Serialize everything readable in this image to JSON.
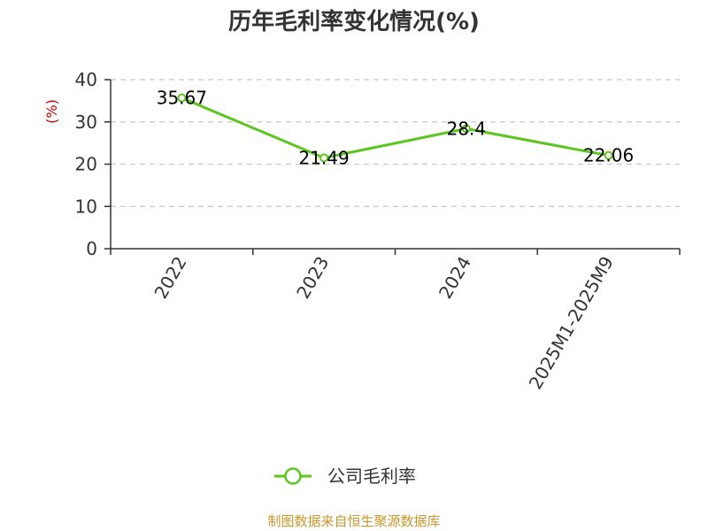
{
  "chart_data": {
    "type": "line",
    "title": "历年毛利率变化情况(%)",
    "xlabel": "",
    "ylabel": "(%)",
    "categories": [
      "2022",
      "2023",
      "2024",
      "2025M1-2025M9"
    ],
    "series": [
      {
        "name": "公司毛利率",
        "values": [
          35.67,
          21.49,
          28.4,
          22.06
        ],
        "labels": [
          "35.67",
          "21.49",
          "28.4",
          "22.06"
        ]
      }
    ],
    "ylim": [
      0,
      40
    ],
    "yticks": [
      0,
      10,
      20,
      30,
      40
    ],
    "grid": true,
    "legend_position": "bottom"
  },
  "colors": {
    "series": "#5cc61e",
    "title": "#333333",
    "ylabel": "#cc0000",
    "grid": "#c8c8c8",
    "axis": "#333333",
    "source": "#c9962c"
  },
  "footer": {
    "source": "制图数据来自恒生聚源数据库"
  }
}
